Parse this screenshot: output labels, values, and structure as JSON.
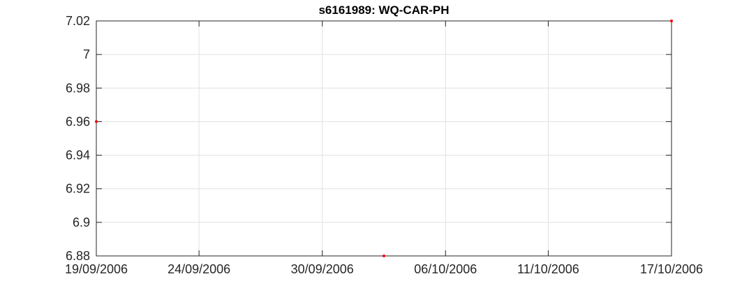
{
  "chart_data": {
    "type": "scatter",
    "title": "s6161989: WQ-CAR-PH",
    "xlabel": "",
    "ylabel": "",
    "x_axis": {
      "type": "date",
      "range": [
        "2006-09-19",
        "2006-10-17"
      ],
      "ticks": [
        "2006-09-19",
        "2006-09-24",
        "2006-09-30",
        "2006-10-06",
        "2006-10-11",
        "2006-10-17"
      ],
      "tick_labels": [
        "19/09/2006",
        "24/09/2006",
        "30/09/2006",
        "06/10/2006",
        "11/10/2006",
        "17/10/2006"
      ]
    },
    "y_axis": {
      "range": [
        6.88,
        7.02
      ],
      "ticks": [
        6.88,
        6.9,
        6.92,
        6.94,
        6.96,
        6.98,
        7.0,
        7.02
      ],
      "tick_labels": [
        "6.88",
        "6.9",
        "6.92",
        "6.94",
        "6.96",
        "6.98",
        "7",
        "7.02"
      ]
    },
    "grid": true,
    "legend": "none",
    "series": [
      {
        "color": "#ff0000",
        "points": [
          {
            "x": "2006-09-19",
            "y": 6.96
          },
          {
            "x": "2006-10-03",
            "y": 6.88
          },
          {
            "x": "2006-10-17",
            "y": 7.02
          }
        ]
      }
    ]
  }
}
